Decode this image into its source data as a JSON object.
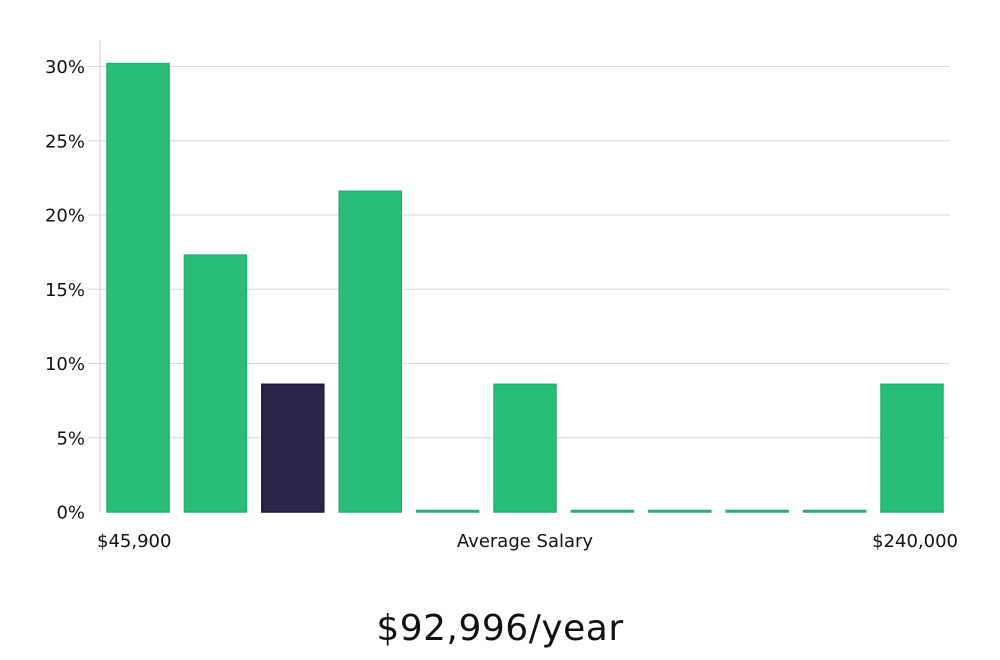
{
  "chart_data": {
    "type": "bar",
    "title": "",
    "xlabel": "Average Salary",
    "ylabel": "",
    "x_min_label": "$45,900",
    "x_max_label": "$240,000",
    "ylim": [
      0,
      32
    ],
    "yticks": [
      0,
      5,
      10,
      15,
      20,
      25,
      30
    ],
    "ytick_labels": [
      "0%",
      "5%",
      "10%",
      "15%",
      "20%",
      "25%",
      "30%"
    ],
    "values": [
      30.2,
      17.3,
      8.6,
      21.6,
      0,
      8.6,
      0,
      0,
      0,
      0,
      8.6
    ],
    "highlight_index": 2,
    "grid": true
  },
  "summary": {
    "average_salary": "$92,996/year"
  },
  "colors": {
    "bar": "#2abd77",
    "bar_stroke": "#20b26c",
    "highlight": "#2a2647",
    "gridline": "#d9d9d9",
    "text": "#111111"
  }
}
